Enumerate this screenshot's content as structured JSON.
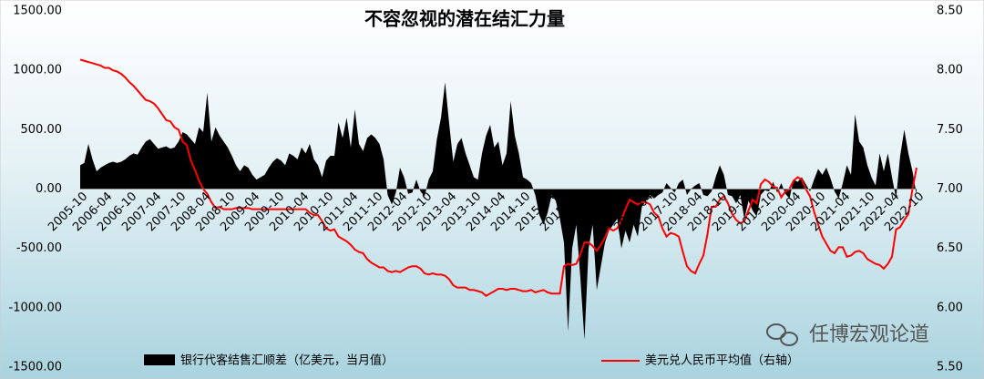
{
  "chart_data": {
    "type": "combo",
    "title": "不容忽视的潜在结汇力量",
    "watermark": "任博宏观论道",
    "categories": [
      "2005-10",
      null,
      null,
      null,
      null,
      null,
      "2006-04",
      null,
      null,
      null,
      null,
      null,
      "2006-10",
      null,
      null,
      null,
      null,
      null,
      "2007-04",
      null,
      null,
      null,
      null,
      null,
      "2007-10",
      null,
      null,
      null,
      null,
      null,
      "2008-04",
      null,
      null,
      null,
      null,
      null,
      "2008-10",
      null,
      null,
      null,
      null,
      null,
      "2009-04",
      null,
      null,
      null,
      null,
      null,
      "2009-10",
      null,
      null,
      null,
      null,
      null,
      "2010-04",
      null,
      null,
      null,
      null,
      null,
      "2010-10",
      null,
      null,
      null,
      null,
      null,
      "2011-04",
      null,
      null,
      null,
      null,
      null,
      "2011-10",
      null,
      null,
      null,
      null,
      null,
      "2012-04",
      null,
      null,
      null,
      null,
      null,
      "2012-10",
      null,
      null,
      null,
      null,
      null,
      "2013-04",
      null,
      null,
      null,
      null,
      null,
      "2013-10",
      null,
      null,
      null,
      null,
      null,
      "2014-04",
      null,
      null,
      null,
      null,
      null,
      "2014-10",
      null,
      null,
      null,
      null,
      null,
      "2015-04",
      null,
      null,
      null,
      null,
      null,
      "2015-10",
      null,
      null,
      null,
      null,
      null,
      "2016-04",
      null,
      null,
      null,
      null,
      null,
      "2016-10",
      null,
      null,
      null,
      null,
      null,
      "2017-04",
      null,
      null,
      null,
      null,
      null,
      "2017-10",
      null,
      null,
      null,
      null,
      null,
      "2018-04",
      null,
      null,
      null,
      null,
      null,
      "2018-10",
      null,
      null,
      null,
      null,
      null,
      "2019-04",
      null,
      null,
      null,
      null,
      null,
      "2019-10",
      null,
      null,
      null,
      null,
      null,
      "2020-04",
      null,
      null,
      null,
      null,
      null,
      "2020-10",
      null,
      null,
      null,
      null,
      null,
      "2021-04",
      null,
      null,
      null,
      null,
      null,
      "2021-10",
      null,
      null,
      null,
      null,
      null,
      "2022-04",
      null,
      null,
      null,
      null,
      null,
      "2022-10"
    ],
    "series": [
      {
        "name": "银行代客结售汇顺差（亿美元，当月值）",
        "type": "area",
        "color": "#000000",
        "values": [
          200,
          220,
          380,
          250,
          150,
          180,
          200,
          220,
          230,
          220,
          230,
          250,
          280,
          300,
          290,
          350,
          400,
          420,
          380,
          340,
          350,
          360,
          340,
          350,
          400,
          480,
          460,
          420,
          380,
          520,
          480,
          810,
          400,
          520,
          450,
          400,
          350,
          280,
          200,
          150,
          200,
          180,
          120,
          80,
          100,
          120,
          180,
          230,
          260,
          240,
          200,
          300,
          280,
          250,
          350,
          300,
          380,
          250,
          200,
          100,
          240,
          280,
          280,
          560,
          430,
          600,
          350,
          670,
          380,
          320,
          430,
          460,
          430,
          380,
          250,
          -50,
          -130,
          -30,
          180,
          100,
          -40,
          -30,
          80,
          -20,
          -60,
          80,
          150,
          420,
          600,
          900,
          550,
          230,
          380,
          430,
          300,
          200,
          100,
          80,
          300,
          450,
          540,
          350,
          400,
          200,
          300,
          740,
          450,
          300,
          100,
          80,
          50,
          -50,
          -220,
          -300,
          -200,
          -50,
          -100,
          -250,
          -450,
          -1200,
          -500,
          -300,
          -750,
          -1270,
          -500,
          -300,
          -850,
          -650,
          -450,
          -350,
          -300,
          -250,
          -500,
          -350,
          -450,
          -300,
          -400,
          -150,
          -100,
          -50,
          -80,
          -50,
          -30,
          50,
          10,
          -30,
          50,
          80,
          -50,
          0,
          30,
          50,
          -50,
          -60,
          -20,
          100,
          200,
          120,
          -50,
          -60,
          -120,
          -50,
          -250,
          -100,
          -180,
          -230,
          -50,
          -10,
          -20,
          60,
          -30,
          50,
          -40,
          -80,
          80,
          60,
          100,
          40,
          -20,
          80,
          170,
          120,
          180,
          90,
          -20,
          -80,
          50,
          200,
          120,
          630,
          400,
          350,
          200,
          100,
          30,
          300,
          150,
          300,
          100,
          -80,
          280,
          500,
          300,
          150,
          -50
        ]
      },
      {
        "name": "美元兑人民币平均值（右轴）",
        "type": "line",
        "axis": "y2",
        "color": "#ff0000",
        "values": [
          8.09,
          8.08,
          8.07,
          8.06,
          8.05,
          8.04,
          8.02,
          8.02,
          8.0,
          7.99,
          7.97,
          7.94,
          7.9,
          7.87,
          7.83,
          7.79,
          7.75,
          7.74,
          7.72,
          7.68,
          7.63,
          7.58,
          7.57,
          7.52,
          7.5,
          7.4,
          7.37,
          7.24,
          7.16,
          7.07,
          7.0,
          6.96,
          6.89,
          6.84,
          6.85,
          6.83,
          6.83,
          6.83,
          6.84,
          6.84,
          6.84,
          6.84,
          6.83,
          6.83,
          6.83,
          6.83,
          6.83,
          6.83,
          6.83,
          6.83,
          6.83,
          6.83,
          6.83,
          6.83,
          6.83,
          6.83,
          6.8,
          6.78,
          6.78,
          6.73,
          6.67,
          6.65,
          6.66,
          6.6,
          6.58,
          6.56,
          6.53,
          6.49,
          6.47,
          6.46,
          6.41,
          6.38,
          6.36,
          6.34,
          6.34,
          6.31,
          6.3,
          6.31,
          6.3,
          6.32,
          6.34,
          6.35,
          6.35,
          6.33,
          6.29,
          6.28,
          6.29,
          6.28,
          6.28,
          6.27,
          6.24,
          6.19,
          6.17,
          6.17,
          6.17,
          6.15,
          6.15,
          6.14,
          6.13,
          6.1,
          6.12,
          6.14,
          6.16,
          6.16,
          6.15,
          6.16,
          6.16,
          6.15,
          6.14,
          6.14,
          6.15,
          6.13,
          6.14,
          6.15,
          6.13,
          6.12,
          6.12,
          6.12,
          6.35,
          6.37,
          6.36,
          6.37,
          6.45,
          6.55,
          6.55,
          6.52,
          6.48,
          6.53,
          6.59,
          6.67,
          6.65,
          6.67,
          6.74,
          6.83,
          6.91,
          6.89,
          6.87,
          6.89,
          6.89,
          6.87,
          6.8,
          6.77,
          6.67,
          6.6,
          6.63,
          6.62,
          6.6,
          6.47,
          6.35,
          6.31,
          6.29,
          6.37,
          6.44,
          6.62,
          6.85,
          6.85,
          6.91,
          6.94,
          6.88,
          6.79,
          6.74,
          6.71,
          6.73,
          6.82,
          6.91,
          6.88,
          7.04,
          7.08,
          7.06,
          7.02,
          7.01,
          6.93,
          6.98,
          7.0,
          7.07,
          7.1,
          7.08,
          7.0,
          6.94,
          6.81,
          6.7,
          6.6,
          6.54,
          6.48,
          6.46,
          6.51,
          6.51,
          6.43,
          6.44,
          6.47,
          6.48,
          6.46,
          6.41,
          6.39,
          6.37,
          6.36,
          6.33,
          6.37,
          6.43,
          6.66,
          6.68,
          6.74,
          6.79,
          7.0,
          7.18
        ]
      }
    ],
    "ylim": [
      -1500,
      1500
    ],
    "yticks": [
      {
        "value": -1500,
        "label": "-1500.00"
      },
      {
        "value": -1000,
        "label": "-1000.00"
      },
      {
        "value": -500,
        "label": "-500.00"
      },
      {
        "value": 0,
        "label": "0.00"
      },
      {
        "value": 500,
        "label": "500.00"
      },
      {
        "value": 1000,
        "label": "1000.00"
      },
      {
        "value": 1500,
        "label": "1500.00"
      }
    ],
    "y2lim": [
      5.5,
      8.5
    ],
    "y2ticks": [
      {
        "value": 5.5,
        "label": "5.50"
      },
      {
        "value": 6,
        "label": "6.00"
      },
      {
        "value": 6.5,
        "label": "6.50"
      },
      {
        "value": 7,
        "label": "7.00"
      },
      {
        "value": 7.5,
        "label": "7.50"
      },
      {
        "value": 8,
        "label": "8.00"
      },
      {
        "value": 8.5,
        "label": "8.50"
      }
    ]
  }
}
